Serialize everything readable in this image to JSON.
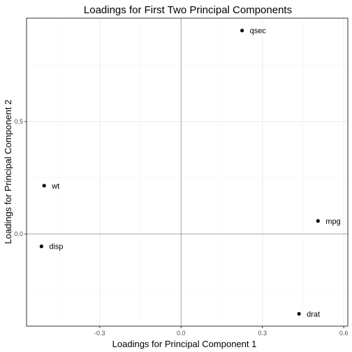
{
  "chart_data": {
    "type": "scatter",
    "title": "Loadings for First Two Principal Components",
    "xlabel": "Loadings for Principal Component 1",
    "ylabel": "Loadings for Principal Component 2",
    "xlim": [
      -0.57,
      0.615
    ],
    "ylim": [
      -0.41,
      0.96
    ],
    "x_ticks": [
      -0.3,
      0.0,
      0.3,
      0.6
    ],
    "x_tick_labels": [
      "-0.3",
      "0.0",
      "0.3",
      "0.6"
    ],
    "y_ticks": [
      0.0,
      0.5
    ],
    "y_tick_labels": [
      "0.0",
      "0.5"
    ],
    "reference_lines": {
      "x": 0,
      "y": 0
    },
    "grid": true,
    "points": [
      {
        "label": "qsec",
        "x": 0.225,
        "y": 0.905
      },
      {
        "label": "wt",
        "x": -0.505,
        "y": 0.215
      },
      {
        "label": "mpg",
        "x": 0.505,
        "y": 0.058
      },
      {
        "label": "disp",
        "x": -0.515,
        "y": -0.055
      },
      {
        "label": "drat",
        "x": 0.435,
        "y": -0.355
      }
    ],
    "colors": {
      "point": "#000000",
      "grid_major": "#ebebeb",
      "grid_minor": "#f5f5f5",
      "panel_border": "#333333",
      "reference_line": "#a6a6a6",
      "tick_text": "#4d4d4d"
    }
  }
}
